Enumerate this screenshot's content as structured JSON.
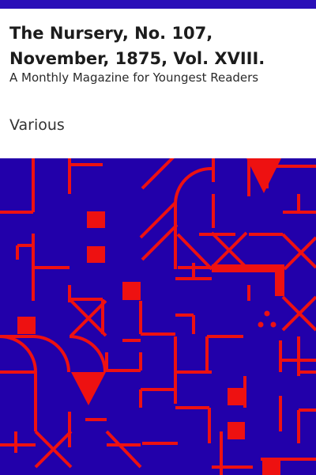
{
  "book": {
    "title": "The Nursery, No. 107, November, 1875, Vol. XVIII.",
    "subtitle": "A Monthly Magazine for Youngest Readers",
    "author": "Various"
  },
  "colors": {
    "bar": "#2b0fb8",
    "pattern_bg": "#2200aa",
    "pattern_fg": "#ee1111"
  }
}
